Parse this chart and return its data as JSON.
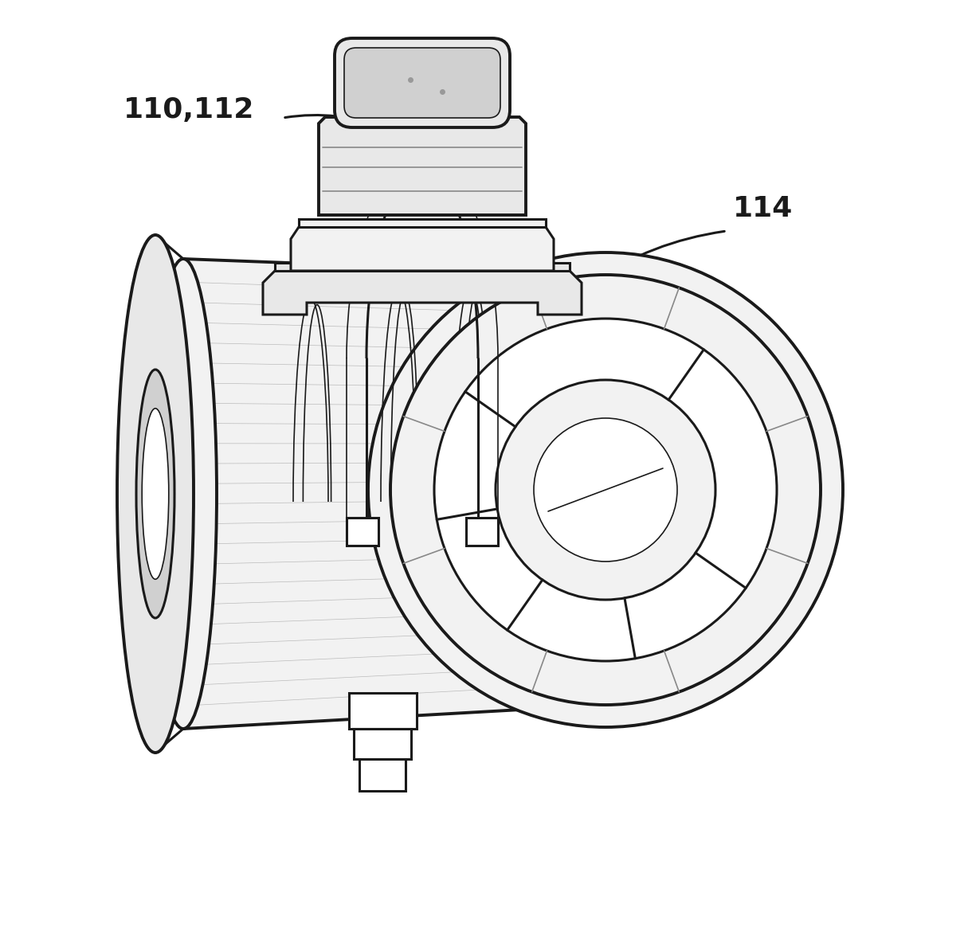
{
  "bg_color": "#ffffff",
  "line_color": "#1a1a1a",
  "fill_light": "#e8e8e8",
  "fill_lighter": "#f2f2f2",
  "fill_mid": "#d0d0d0",
  "fill_white": "#ffffff",
  "label_110_112": "110,112",
  "label_114": "114",
  "lw_main": 2.2,
  "lw_thin": 1.2,
  "lw_thick": 2.8,
  "fontsize_label": 26,
  "figwidth": 12.15,
  "figheight": 11.84,
  "dpi": 100
}
